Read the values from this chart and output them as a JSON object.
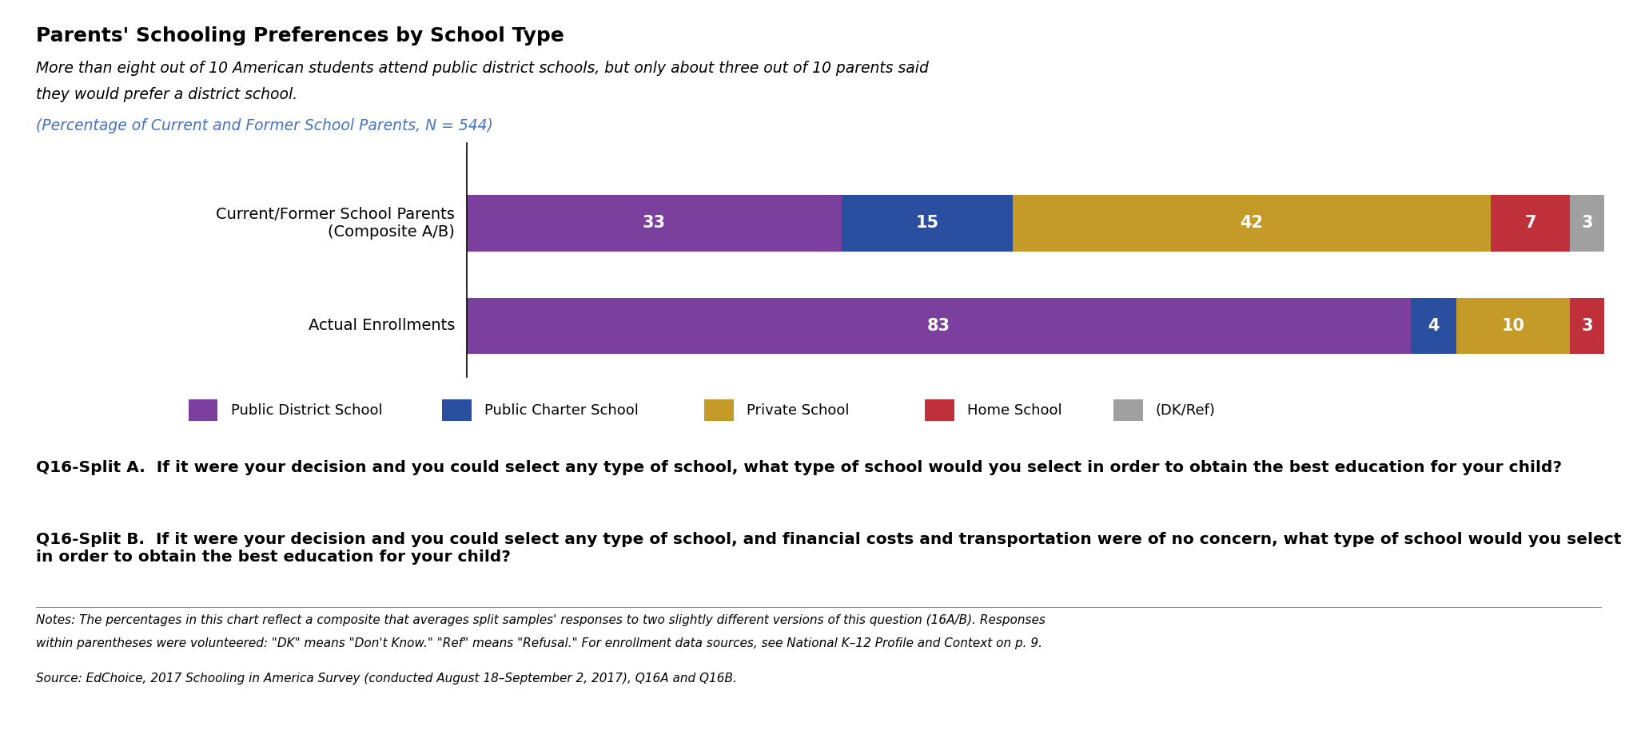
{
  "title": "Parents' Schooling Preferences by School Type",
  "subtitle_line1": "More than eight out of 10 American students attend public district schools, but only about three out of 10 parents said",
  "subtitle_line2": "they would prefer a district school.",
  "subtitle_italic": "(Percentage of Current and Former School Parents, N = 544)",
  "rows": [
    {
      "label": "Current/Former School Parents\n(Composite A/B)",
      "values": [
        33,
        15,
        42,
        7,
        3
      ]
    },
    {
      "label": "Actual Enrollments",
      "values": [
        83,
        4,
        10,
        3,
        0
      ]
    }
  ],
  "categories": [
    "Public District School",
    "Public Charter School",
    "Private School",
    "Home School",
    "(DK/Ref)"
  ],
  "colors": [
    "#7B3F9E",
    "#2B4FA0",
    "#C49A28",
    "#C0303A",
    "#A0A0A0"
  ],
  "question_a": "Q16-Split A.  If it were your decision and you could select any type of school, what type of school would you select in order to obtain the best education for your child?",
  "question_b": "Q16-Split B.  If it were your decision and you could select any type of school, and financial costs and transportation were of no concern, what type of school would you select in order to obtain the best education for your child?",
  "notes_line1": "Notes: The percentages in this chart reflect a composite that averages split samples' responses to two slightly different versions of this question (16A/B). Responses",
  "notes_line2": "within parentheses were volunteered: \"DK\" means \"Don't Know.\" \"Ref\" means \"Refusal.\" For enrollment data sources, see National K–12 Profile and Context on p. 9.",
  "source": "Source: EdChoice, 2017 Schooling in America Survey (conducted August 18–September 2, 2017), Q16A and Q16B.",
  "title_fontsize": 18,
  "subtitle_fontsize": 13.5,
  "value_fontsize": 15,
  "label_fontsize": 14,
  "legend_fontsize": 13,
  "question_fontsize": 14.5,
  "note_fontsize": 11,
  "background_color": "#FFFFFF",
  "text_color": "#000000",
  "subtitle_color": "#4472C4"
}
